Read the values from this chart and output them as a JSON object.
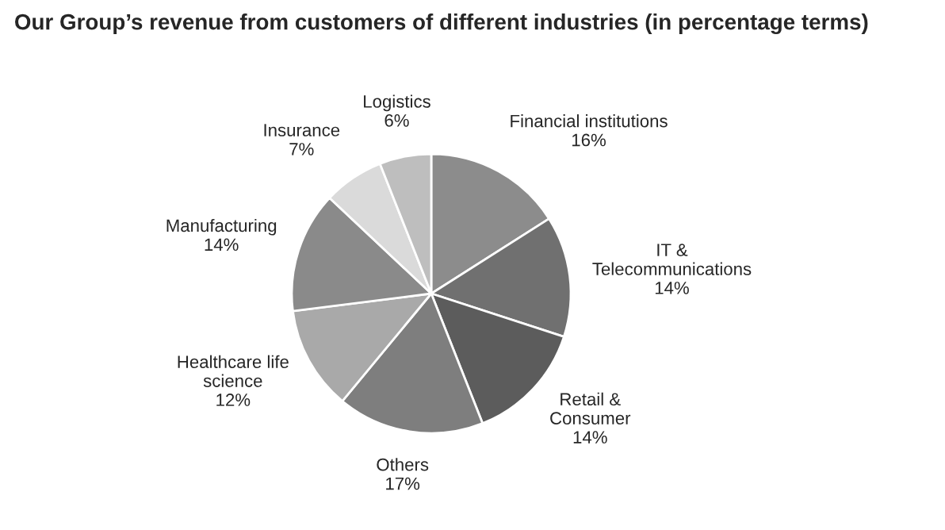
{
  "chart_data": {
    "type": "pie",
    "title": "Our Group’s revenue from customers of different industries (in percentage terms)",
    "categories": [
      "Financial institutions",
      "IT &\nTelecommunications",
      "Retail &\nConsumer",
      "Others",
      "Healthcare life\nscience",
      "Manufacturing",
      "Insurance",
      "Logistics"
    ],
    "values": [
      16,
      14,
      14,
      17,
      12,
      14,
      7,
      6
    ],
    "value_labels": [
      "16%",
      "14%",
      "14%",
      "17%",
      "12%",
      "14%",
      "7%",
      "6%"
    ],
    "colors": [
      "#8c8c8c",
      "#707070",
      "#5c5c5c",
      "#7e7e7e",
      "#a9a9a9",
      "#8a8a8a",
      "#dadada",
      "#bebebe"
    ]
  }
}
